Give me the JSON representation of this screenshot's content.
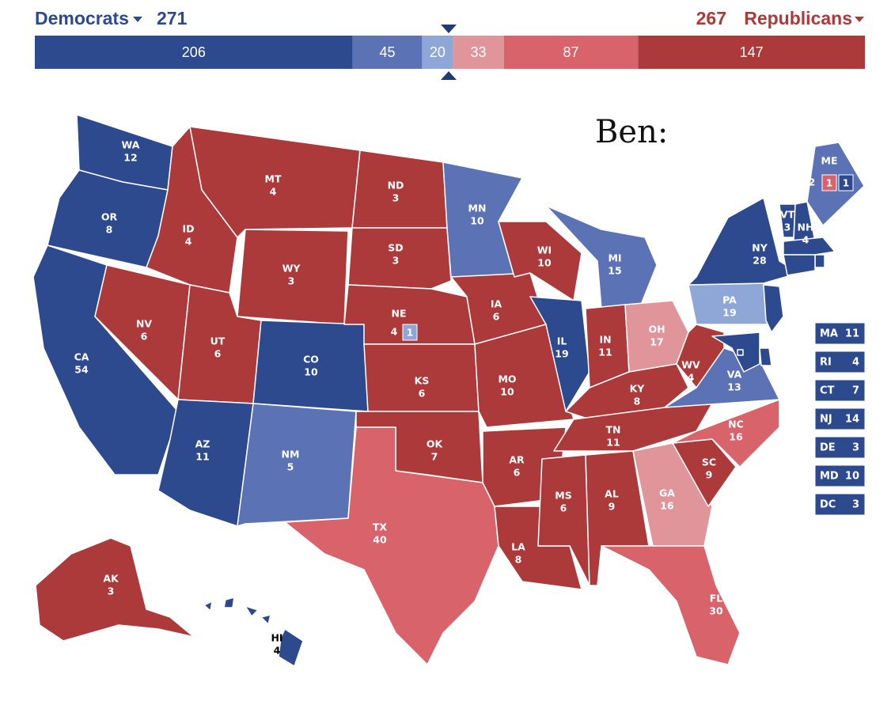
{
  "header": {
    "left_label": "Democrats",
    "left_total": 271,
    "right_total": 267,
    "right_label": "Republicans"
  },
  "ratings": {
    "solid_d": "#2c4a8d",
    "likely_d": "#5b72b4",
    "lean_d": "#8ea7d7",
    "lean_r": "#e0959b",
    "likely_r": "#d8636a",
    "solid_r": "#ad3a3b"
  },
  "header_colors": {
    "left": "#2c4a8d",
    "right": "#ad3a3b"
  },
  "bar": [
    {
      "value": 206,
      "rating": "solid_d"
    },
    {
      "value": 45,
      "rating": "likely_d"
    },
    {
      "value": 20,
      "rating": "lean_d"
    },
    {
      "value": 33,
      "rating": "lean_r"
    },
    {
      "value": 87,
      "rating": "likely_r"
    },
    {
      "value": 147,
      "rating": "solid_r"
    }
  ],
  "annotation": "Ben:",
  "states": [
    {
      "abbr": "WA",
      "votes": 12,
      "rating": "solid_d"
    },
    {
      "abbr": "OR",
      "votes": 8,
      "rating": "solid_d"
    },
    {
      "abbr": "CA",
      "votes": 54,
      "rating": "solid_d"
    },
    {
      "abbr": "NV",
      "votes": 6,
      "rating": "solid_r"
    },
    {
      "abbr": "ID",
      "votes": 4,
      "rating": "solid_r"
    },
    {
      "abbr": "MT",
      "votes": 4,
      "rating": "solid_r"
    },
    {
      "abbr": "WY",
      "votes": 3,
      "rating": "solid_r"
    },
    {
      "abbr": "UT",
      "votes": 6,
      "rating": "solid_r"
    },
    {
      "abbr": "AZ",
      "votes": 11,
      "rating": "solid_d"
    },
    {
      "abbr": "CO",
      "votes": 10,
      "rating": "solid_d"
    },
    {
      "abbr": "NM",
      "votes": 5,
      "rating": "likely_d"
    },
    {
      "abbr": "ND",
      "votes": 3,
      "rating": "solid_r"
    },
    {
      "abbr": "SD",
      "votes": 3,
      "rating": "solid_r"
    },
    {
      "abbr": "NE",
      "votes": 4,
      "rating": "solid_r",
      "districts": [
        {
          "votes": 1,
          "rating": "lean_d"
        }
      ]
    },
    {
      "abbr": "KS",
      "votes": 6,
      "rating": "solid_r"
    },
    {
      "abbr": "OK",
      "votes": 7,
      "rating": "solid_r"
    },
    {
      "abbr": "TX",
      "votes": 40,
      "rating": "likely_r"
    },
    {
      "abbr": "MN",
      "votes": 10,
      "rating": "likely_d"
    },
    {
      "abbr": "IA",
      "votes": 6,
      "rating": "solid_r"
    },
    {
      "abbr": "MO",
      "votes": 10,
      "rating": "solid_r"
    },
    {
      "abbr": "AR",
      "votes": 6,
      "rating": "solid_r"
    },
    {
      "abbr": "LA",
      "votes": 8,
      "rating": "solid_r"
    },
    {
      "abbr": "WI",
      "votes": 10,
      "rating": "solid_r"
    },
    {
      "abbr": "IL",
      "votes": 19,
      "rating": "solid_d"
    },
    {
      "abbr": "MI",
      "votes": 15,
      "rating": "likely_d"
    },
    {
      "abbr": "IN",
      "votes": 11,
      "rating": "solid_r"
    },
    {
      "abbr": "OH",
      "votes": 17,
      "rating": "lean_r"
    },
    {
      "abbr": "KY",
      "votes": 8,
      "rating": "solid_r"
    },
    {
      "abbr": "TN",
      "votes": 11,
      "rating": "solid_r"
    },
    {
      "abbr": "MS",
      "votes": 6,
      "rating": "solid_r"
    },
    {
      "abbr": "AL",
      "votes": 9,
      "rating": "solid_r"
    },
    {
      "abbr": "GA",
      "votes": 16,
      "rating": "lean_r"
    },
    {
      "abbr": "FL",
      "votes": 30,
      "rating": "likely_r"
    },
    {
      "abbr": "SC",
      "votes": 9,
      "rating": "solid_r"
    },
    {
      "abbr": "NC",
      "votes": 16,
      "rating": "likely_r"
    },
    {
      "abbr": "VA",
      "votes": 13,
      "rating": "likely_d"
    },
    {
      "abbr": "WV",
      "votes": 4,
      "rating": "solid_r"
    },
    {
      "abbr": "PA",
      "votes": 19,
      "rating": "lean_d"
    },
    {
      "abbr": "NY",
      "votes": 28,
      "rating": "solid_d"
    },
    {
      "abbr": "VT",
      "votes": 3,
      "rating": "solid_d"
    },
    {
      "abbr": "NH",
      "votes": 4,
      "rating": "solid_d"
    },
    {
      "abbr": "ME",
      "votes": 2,
      "rating": "likely_d",
      "districts": [
        {
          "votes": 1,
          "rating": "likely_r"
        },
        {
          "votes": 1,
          "rating": "solid_d"
        }
      ]
    },
    {
      "abbr": "MA",
      "votes": 11,
      "rating": "solid_d"
    },
    {
      "abbr": "RI",
      "votes": 4,
      "rating": "solid_d"
    },
    {
      "abbr": "CT",
      "votes": 7,
      "rating": "solid_d"
    },
    {
      "abbr": "NJ",
      "votes": 14,
      "rating": "solid_d"
    },
    {
      "abbr": "DE",
      "votes": 3,
      "rating": "solid_d"
    },
    {
      "abbr": "MD",
      "votes": 10,
      "rating": "solid_d"
    },
    {
      "abbr": "DC",
      "votes": 3,
      "rating": "solid_d"
    },
    {
      "abbr": "AK",
      "votes": 3,
      "rating": "solid_r"
    },
    {
      "abbr": "HI",
      "votes": 4,
      "rating": "solid_d"
    }
  ]
}
